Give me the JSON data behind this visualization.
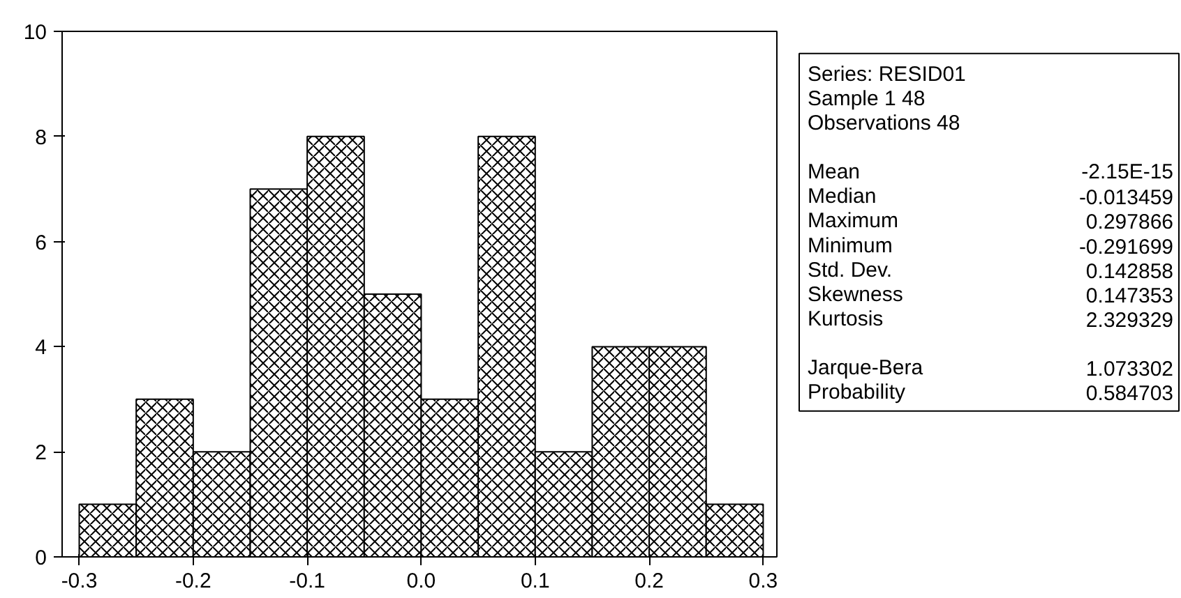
{
  "chart_data": [
    {
      "type": "histogram",
      "bins": [
        -0.3,
        -0.25,
        -0.2,
        -0.15,
        -0.1,
        -0.05,
        0.0,
        0.05,
        0.1,
        0.15,
        0.2,
        0.25,
        0.3
      ],
      "values": [
        1,
        3,
        2,
        7,
        8,
        5,
        3,
        8,
        2,
        4,
        4,
        1
      ],
      "color": "#000000",
      "xlim": [
        -0.315,
        0.312
      ],
      "ylim": [
        0,
        10
      ],
      "xticks": [
        -0.3,
        -0.2,
        -0.1,
        {
          "value": 0,
          "label": "0.0"
        },
        0.1,
        0.2,
        0.3
      ],
      "yticks": [
        0,
        2,
        4,
        6,
        8,
        10
      ],
      "grid": false
    },
    {
      "type": "other",
      "annotations": [
        "Series: RESID01",
        "Sample 1 48",
        "Observations 48",
        "Mean",
        "-2.15E-15",
        "Median",
        "-0.013459",
        "Maximum",
        "0.297866",
        "Minimum",
        "-0.291699",
        "Std. Dev.",
        "0.142858",
        "Skewness",
        "0.147353",
        "Kurtosis",
        "2.329329",
        "Jarque-Bera",
        "1.073302",
        "Probability",
        "0.584703"
      ]
    }
  ]
}
